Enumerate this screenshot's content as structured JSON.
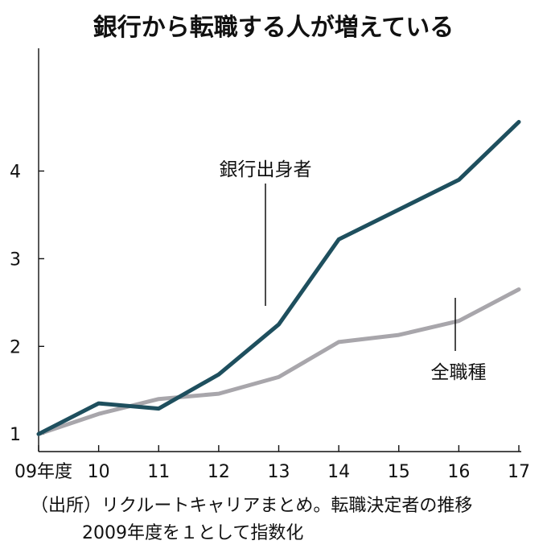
{
  "title": "銀行から転職する人が増えている",
  "source_lines": [
    "（出所）リクルートキャリアまとめ。転職決定者の推移",
    "2009年度を１として指数化"
  ],
  "chart_data": {
    "type": "line",
    "categories": [
      "09年度",
      "10",
      "11",
      "12",
      "13",
      "14",
      "15",
      "16",
      "17"
    ],
    "series": [
      {
        "name": "銀行出身者",
        "values": [
          1.0,
          1.35,
          1.29,
          1.68,
          2.25,
          3.22,
          3.56,
          3.9,
          4.56
        ],
        "color": "#1e4f5e"
      },
      {
        "name": "全職種",
        "values": [
          1.0,
          1.23,
          1.4,
          1.46,
          1.65,
          2.05,
          2.13,
          2.29,
          2.65
        ],
        "color": "#a8a6ab"
      }
    ],
    "y_ticks": [
      "1",
      "2",
      "3",
      "4"
    ],
    "ylim": [
      0.8,
      5.4
    ],
    "grid": false,
    "legend": "direct labels on lines"
  }
}
